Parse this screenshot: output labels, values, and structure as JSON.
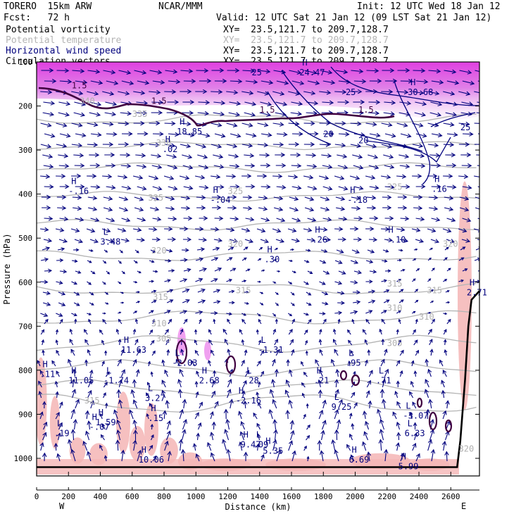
{
  "header": {
    "model": "TORERO  15km ARW",
    "org": "NCAR/MMM",
    "init": "Init: 12 UTC Wed 18 Jan 12",
    "fcst": "Fcst:   72 h",
    "valid": "Valid: 12 UTC Sat 21 Jan 12 (09 LST Sat 21 Jan 12)"
  },
  "legend": [
    {
      "label": "Potential vorticity",
      "color": "#000000",
      "range": "XY=  23.5,121.7 to 209.7,128.7"
    },
    {
      "label": "Potential temperature",
      "color": "#b4b4b4",
      "range": "XY=  23.5,121.7 to 209.7,128.7"
    },
    {
      "label": "Horizontal wind speed",
      "color": "#00007e",
      "range": "XY=  23.5,121.7 to 209.7,128.7"
    },
    {
      "label": "Circulation vectors",
      "color": "#000000",
      "range": "XY=  23.5,121.7 to 209.7,128.7"
    }
  ],
  "chart_data": {
    "type": "cross-section",
    "xlabel": "Distance (km)",
    "ylabel": "Pressure (hPa)",
    "xlim": [
      0,
      2780
    ],
    "ylim": [
      1040,
      100
    ],
    "x_ticks": [
      0,
      200,
      400,
      600,
      800,
      1000,
      1200,
      1400,
      1600,
      1800,
      2000,
      2200,
      2400,
      2600
    ],
    "y_ticks": [
      100,
      200,
      300,
      400,
      500,
      600,
      700,
      800,
      900,
      1000
    ],
    "x_end_labels": {
      "left": "W",
      "right": "E"
    },
    "theta_contours": [
      {
        "label": "305",
        "x": 750,
        "p": 735
      },
      {
        "label": "310",
        "x": 720,
        "p": 700
      },
      {
        "label": "315",
        "x": 730,
        "p": 640
      },
      {
        "label": "320",
        "x": 720,
        "p": 535
      },
      {
        "label": "325",
        "x": 700,
        "p": 415
      },
      {
        "label": "330",
        "x": 750,
        "p": 290
      },
      {
        "label": "335",
        "x": 600,
        "p": 225
      },
      {
        "label": "340",
        "x": 270,
        "p": 195
      },
      {
        "label": "320",
        "x": 1200,
        "p": 520
      },
      {
        "label": "325",
        "x": 1200,
        "p": 400
      },
      {
        "label": "315",
        "x": 1250,
        "p": 625
      },
      {
        "label": "315",
        "x": 2200,
        "p": 610
      },
      {
        "label": "310",
        "x": 2200,
        "p": 665
      },
      {
        "label": "305",
        "x": 2200,
        "p": 745
      },
      {
        "label": "310",
        "x": 2400,
        "p": 685
      },
      {
        "label": "315",
        "x": 2450,
        "p": 625
      },
      {
        "label": "320",
        "x": 2550,
        "p": 520
      },
      {
        "label": "325",
        "x": 2200,
        "p": 390
      },
      {
        "label": "315",
        "x": 300,
        "p": 875
      },
      {
        "label": "320",
        "x": 2650,
        "p": 985
      }
    ],
    "wind_speed_contours": [
      {
        "label": "20",
        "x": 1800,
        "p": 270
      },
      {
        "label": "20",
        "x": 2020,
        "p": 285
      },
      {
        "label": "25",
        "x": 2660,
        "p": 255
      },
      {
        "label": "25",
        "x": 1350,
        "p": 130
      },
      {
        "label": "25",
        "x": 1940,
        "p": 175
      }
    ],
    "pv_contours": [
      {
        "label": "1.5",
        "x": 220,
        "p": 160
      },
      {
        "label": "1.5",
        "x": 720,
        "p": 195
      },
      {
        "label": "1.5",
        "x": 1400,
        "p": 215
      },
      {
        "label": "1.5",
        "x": 2020,
        "p": 215
      }
    ],
    "extrema": [
      {
        "type": "H",
        "value": "24.47",
        "x": 1650,
        "p": 130
      },
      {
        "type": "H",
        "value": "30.68",
        "x": 2330,
        "p": 175
      },
      {
        "type": "H",
        "value": "18.85",
        "x": 880,
        "p": 265
      },
      {
        "type": "H",
        "value": ".02",
        "x": 790,
        "p": 305
      },
      {
        "type": "H",
        "value": "-.16",
        "x": 200,
        "p": 400
      },
      {
        "type": "H",
        "value": "-.04",
        "x": 1090,
        "p": 420
      },
      {
        "type": "H",
        "value": "-.18",
        "x": 1950,
        "p": 420
      },
      {
        "type": "H",
        "value": ".16",
        "x": 2480,
        "p": 395
      },
      {
        "type": "L",
        "value": "3.48",
        "x": 400,
        "p": 515
      },
      {
        "type": "H",
        "value": ".26",
        "x": 1730,
        "p": 510
      },
      {
        "type": "H",
        "value": "-.10",
        "x": 2190,
        "p": 510
      },
      {
        "type": "H",
        "value": ".30",
        "x": 1430,
        "p": 555
      },
      {
        "type": "H",
        "value": "2.71",
        "x": 2700,
        "p": 630
      },
      {
        "type": "H",
        "value": "11.63",
        "x": 530,
        "p": 760
      },
      {
        "type": "L",
        "value": "-2.03",
        "x": 850,
        "p": 790
      },
      {
        "type": "L",
        "value": "-1.31",
        "x": 1390,
        "p": 760
      },
      {
        "type": "L",
        "value": ".95",
        "x": 1940,
        "p": 790
      },
      {
        "type": "H",
        "value": ".11",
        "x": 20,
        "p": 815
      },
      {
        "type": "H",
        "value": "11.05",
        "x": 200,
        "p": 830
      },
      {
        "type": "L",
        "value": "-1.74",
        "x": 420,
        "p": 830
      },
      {
        "type": "H",
        "value": "2.68",
        "x": 1020,
        "p": 830
      },
      {
        "type": "L",
        "value": ".28",
        "x": 1300,
        "p": 830
      },
      {
        "type": "H",
        "value": ".21",
        "x": 1740,
        "p": 830
      },
      {
        "type": "L",
        "value": ".71",
        "x": 2130,
        "p": 830
      },
      {
        "type": "L",
        "value": "3.27",
        "x": 680,
        "p": 870
      },
      {
        "type": "H",
        "value": "-2.16",
        "x": 1250,
        "p": 875
      },
      {
        "type": "L",
        "value": "9.25",
        "x": 1850,
        "p": 890
      },
      {
        "type": "L",
        "value": "-3.07",
        "x": 2300,
        "p": 910
      },
      {
        "type": "H",
        "value": ".15",
        "x": 700,
        "p": 915
      },
      {
        "type": "H",
        "value": "1.59",
        "x": 370,
        "p": 925
      },
      {
        "type": "H",
        "value": "-.07",
        "x": 330,
        "p": 935
      },
      {
        "type": "L",
        "value": ".19",
        "x": 110,
        "p": 950
      },
      {
        "type": "H",
        "value": "9.47",
        "x": 1280,
        "p": 975
      },
      {
        "type": "L",
        "value": ".09",
        "x": 1360,
        "p": 975
      },
      {
        "type": "L",
        "value": "6.33",
        "x": 2310,
        "p": 950
      },
      {
        "type": "H",
        "value": "5.35",
        "x": 1420,
        "p": 990
      },
      {
        "type": "H",
        "value": "10.06",
        "x": 640,
        "p": 1010
      },
      {
        "type": "H",
        "value": "6.69",
        "x": 1960,
        "p": 1010
      },
      {
        "type": "H",
        "value": "5.99",
        "x": 2270,
        "p": 1025
      }
    ],
    "terrain": [
      [
        0,
        1020
      ],
      [
        2640,
        1020
      ],
      [
        2660,
        960
      ],
      [
        2690,
        820
      ],
      [
        2710,
        700
      ],
      [
        2730,
        640
      ],
      [
        2780,
        620
      ]
    ],
    "grid": false
  }
}
